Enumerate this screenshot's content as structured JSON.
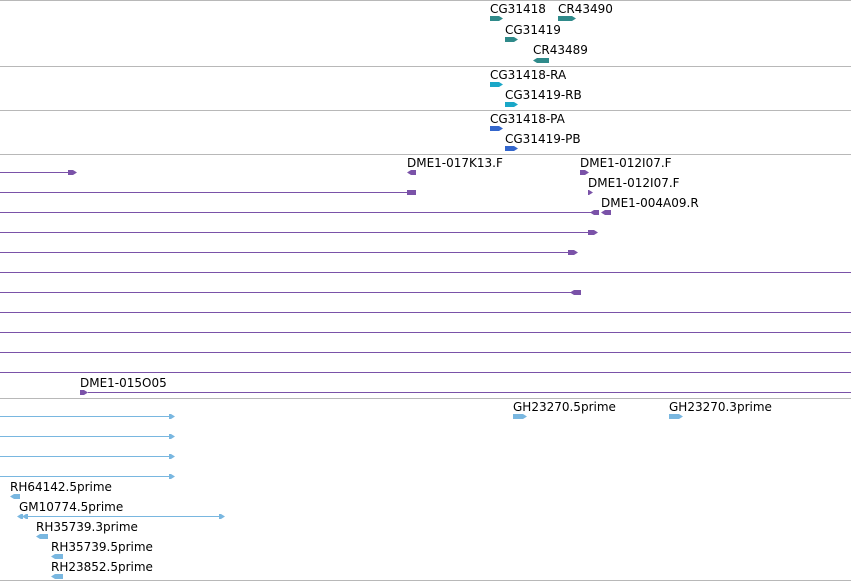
{
  "colors": {
    "teal": "#2f8a8a",
    "cyan": "#1aa7c7",
    "blue": "#3366cc",
    "purple": "#7a52a8",
    "lightblue": "#79b7e0",
    "divider": "#b8b8b8"
  },
  "tracks": {
    "gene": {
      "features": [
        {
          "label": "CG31418",
          "strand": "+"
        },
        {
          "label": "CR43490",
          "strand": "+"
        },
        {
          "label": "CG31419",
          "strand": "+"
        },
        {
          "label": "CR43489",
          "strand": "-"
        }
      ]
    },
    "transcript": {
      "features": [
        {
          "label": "CG31418-RA",
          "strand": "+"
        },
        {
          "label": "CG31419-RB",
          "strand": "+"
        }
      ]
    },
    "protein": {
      "features": [
        {
          "label": "CG31418-PA",
          "strand": "+"
        },
        {
          "label": "CG31419-PB",
          "strand": "+"
        }
      ]
    },
    "bac_ends": {
      "features": [
        {
          "label": "DME1-017K13.F",
          "strand": "-"
        },
        {
          "label": "DME1-012I07.F",
          "strand": "+"
        },
        {
          "label": "DME1-012I07.F",
          "strand": "+"
        },
        {
          "label": "DME1-004A09.R",
          "strand": "-"
        },
        {
          "label": "DME1-015O05",
          "strand": "+"
        }
      ]
    },
    "ests": {
      "features": [
        {
          "label": "GH23270.5prime",
          "strand": "+"
        },
        {
          "label": "GH23270.3prime",
          "strand": "+"
        },
        {
          "label": "RH64142.5prime",
          "strand": "-"
        },
        {
          "label": "GM10774.5prime",
          "strand": "-"
        },
        {
          "label": "RH35739.3prime",
          "strand": "-"
        },
        {
          "label": "RH35739.5prime",
          "strand": "-"
        },
        {
          "label": "RH23852.5prime",
          "strand": "-"
        }
      ]
    }
  }
}
